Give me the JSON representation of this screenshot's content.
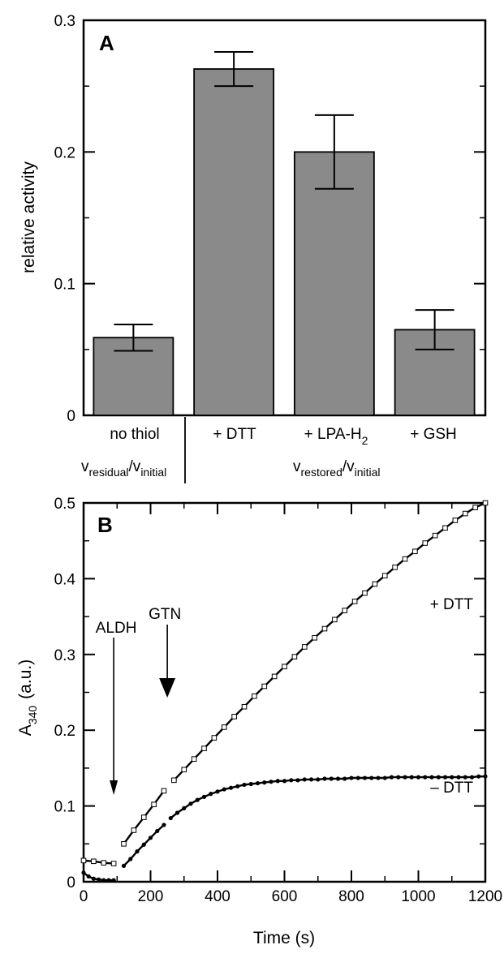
{
  "chart_data": [
    {
      "panel": "A",
      "type": "bar",
      "ylabel": "relative activity",
      "ylim": [
        0,
        0.3
      ],
      "yticks": [
        "0",
        "0.1",
        "0.2",
        "0.3"
      ],
      "categories": [
        "no thiol",
        "+ DTT",
        "+ LPA-H2",
        "+ GSH"
      ],
      "values": [
        0.059,
        0.263,
        0.2,
        0.065
      ],
      "errors": [
        0.01,
        0.013,
        0.028,
        0.015
      ],
      "bar_color": "#8a8a8a",
      "grid": false,
      "annotations": {
        "residual": "vresidual/vinitial",
        "restored": "vrestored/vinitial"
      }
    },
    {
      "panel": "B",
      "type": "line",
      "xlabel": "Time (s)",
      "ylabel": "A340 (a.u.)",
      "xlim": [
        0,
        1200
      ],
      "ylim": [
        0,
        0.5
      ],
      "xticks": [
        "0",
        "200",
        "400",
        "600",
        "800",
        "1000",
        "1200"
      ],
      "yticks": [
        "0",
        "0.1",
        "0.2",
        "0.3",
        "0.4",
        "0.5"
      ],
      "grid": false,
      "markers": [
        {
          "label": "ALDH",
          "x": 90
        },
        {
          "label": "GTN",
          "x": 250
        }
      ],
      "series": [
        {
          "name": "+ DTT",
          "marker": "open-square",
          "segments": [
            {
              "x": [
                0,
                30,
                60,
                90
              ],
              "y": [
                0.028,
                0.027,
                0.025,
                0.024
              ]
            },
            {
              "x": [
                120,
                150,
                180,
                210,
                240
              ],
              "y": [
                0.05,
                0.068,
                0.085,
                0.102,
                0.12
              ]
            },
            {
              "x": [
                270,
                300,
                330,
                360,
                390,
                420,
                450,
                480,
                510,
                540,
                570,
                600,
                630,
                660,
                690,
                720,
                750,
                780,
                810,
                840,
                870,
                900,
                930,
                960,
                990,
                1020,
                1050,
                1080,
                1110,
                1140,
                1170,
                1200
              ],
              "y": [
                0.134,
                0.148,
                0.162,
                0.176,
                0.19,
                0.204,
                0.218,
                0.231,
                0.245,
                0.258,
                0.271,
                0.284,
                0.297,
                0.31,
                0.322,
                0.334,
                0.346,
                0.358,
                0.37,
                0.381,
                0.393,
                0.404,
                0.415,
                0.426,
                0.436,
                0.447,
                0.457,
                0.467,
                0.477,
                0.486,
                0.494,
                0.5
              ]
            }
          ]
        },
        {
          "name": "– DTT",
          "marker": "filled-circle",
          "segments": [
            {
              "x": [
                0,
                15,
                30,
                45,
                60,
                75,
                90
              ],
              "y": [
                0.012,
                0.007,
                0.004,
                0.003,
                0.002,
                0.002,
                0.002
              ]
            },
            {
              "x": [
                120,
                140,
                160,
                180,
                200,
                220,
                240
              ],
              "y": [
                0.021,
                0.03,
                0.04,
                0.049,
                0.058,
                0.067,
                0.075
              ]
            },
            {
              "x": [
                260,
                280,
                300,
                320,
                340,
                360,
                380,
                400,
                420,
                440,
                460,
                480,
                500,
                520,
                540,
                560,
                580,
                600,
                620,
                640,
                660,
                680,
                700,
                720,
                740,
                760,
                780,
                800,
                820,
                840,
                860,
                880,
                900,
                920,
                940,
                960,
                980,
                1000,
                1020,
                1040,
                1060,
                1080,
                1100,
                1120,
                1140,
                1160,
                1180,
                1200
              ],
              "y": [
                0.084,
                0.091,
                0.097,
                0.103,
                0.108,
                0.112,
                0.116,
                0.119,
                0.122,
                0.124,
                0.126,
                0.128,
                0.129,
                0.13,
                0.131,
                0.132,
                0.133,
                0.133,
                0.134,
                0.134,
                0.135,
                0.135,
                0.135,
                0.136,
                0.136,
                0.136,
                0.136,
                0.137,
                0.137,
                0.137,
                0.137,
                0.137,
                0.137,
                0.138,
                0.138,
                0.138,
                0.138,
                0.138,
                0.138,
                0.138,
                0.138,
                0.138,
                0.138,
                0.138,
                0.138,
                0.138,
                0.139,
                0.139
              ]
            }
          ]
        }
      ]
    }
  ],
  "labels": {
    "panel_a": "A",
    "panel_b": "B",
    "a_ylabel": "relative activity",
    "b_xlabel": "Time (s)",
    "b_ylabel_main": "A",
    "b_ylabel_sub": "340",
    "b_ylabel_unit": "(a.u.)",
    "sub_residual_v": "v",
    "sub_residual_s1": "residual",
    "sub_residual_slash": "/v",
    "sub_residual_s2": "initial",
    "sub_restored_v": "v",
    "sub_restored_s1": "restored",
    "sub_restored_slash": "/v",
    "sub_restored_s2": "initial",
    "cat_lpa_main": "+ LPA-H",
    "cat_lpa_sub": "2",
    "series_plus": "+ DTT",
    "series_minus": "– DTT",
    "marker_aldh": "ALDH",
    "marker_gtn": "GTN"
  }
}
